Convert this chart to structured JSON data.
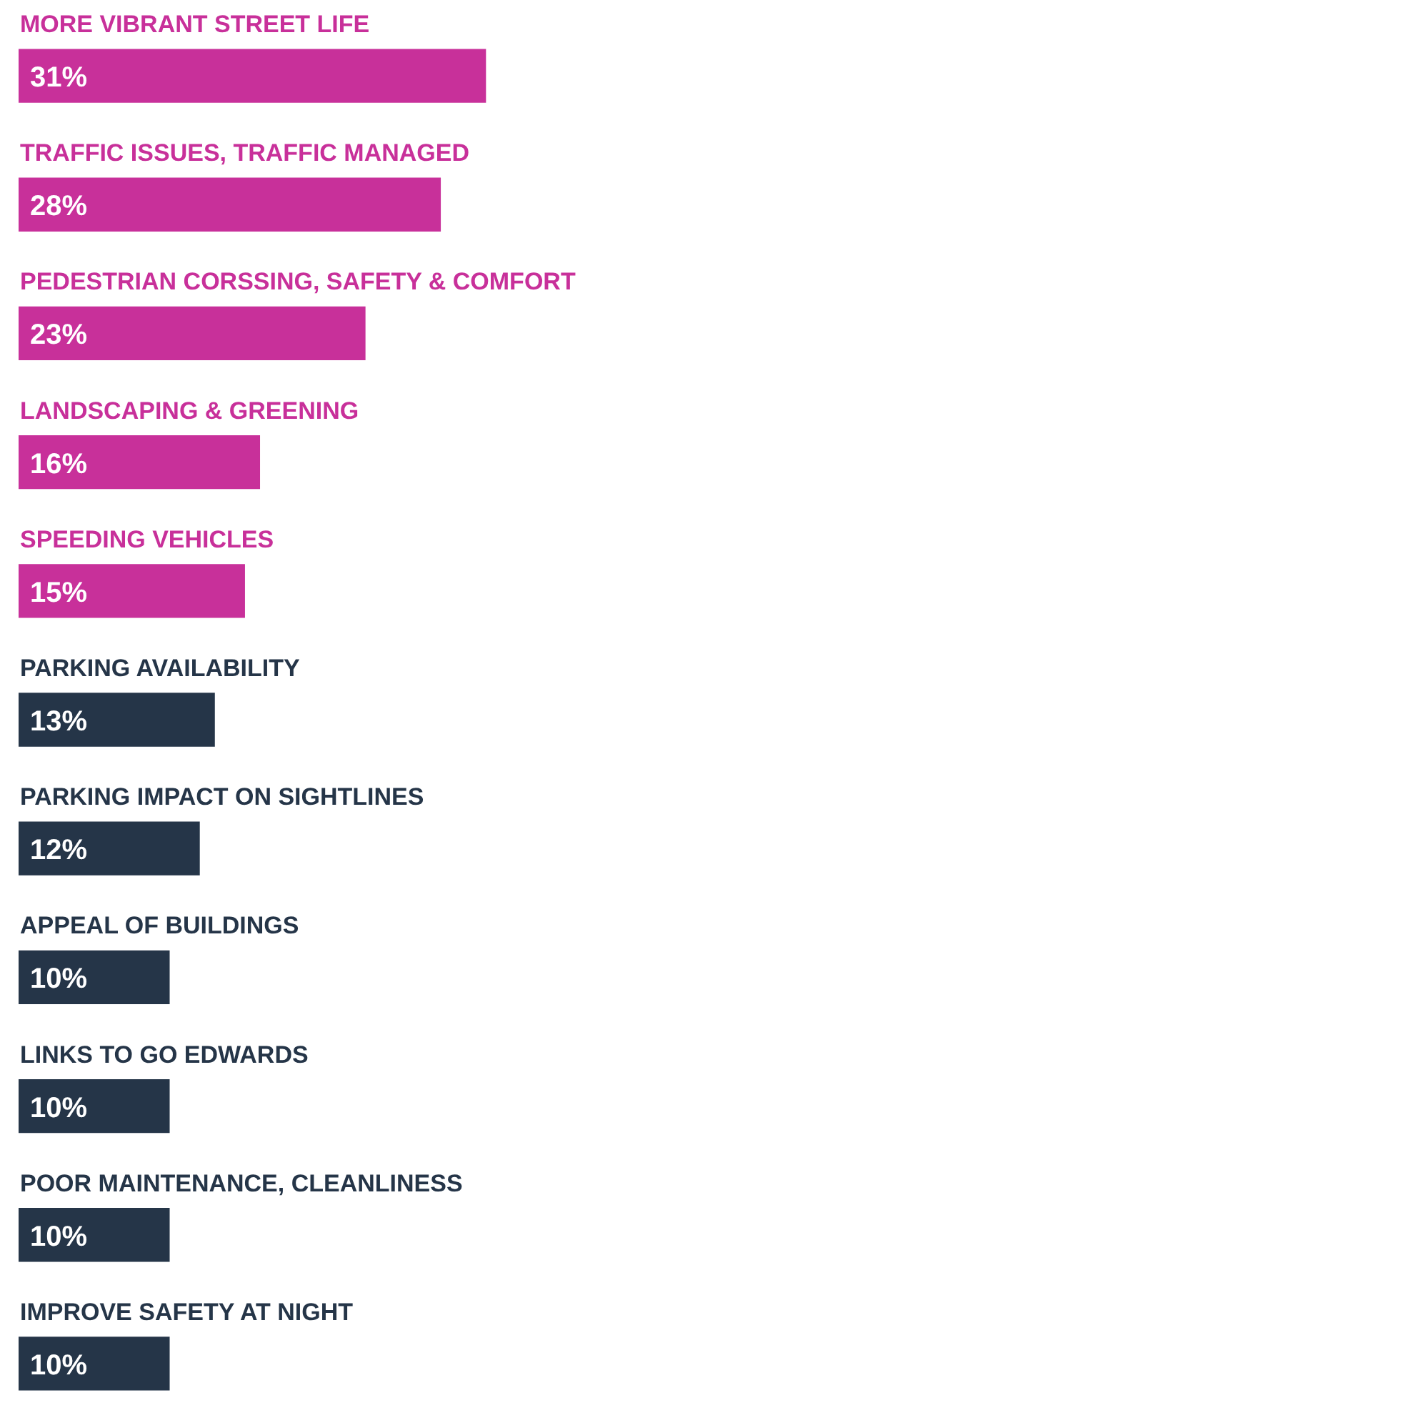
{
  "chart_data": {
    "type": "bar",
    "orientation": "horizontal",
    "categories": [
      "MORE VIBRANT STREET LIFE",
      "TRAFFIC ISSUES, TRAFFIC MANAGED",
      "PEDESTRIAN CORSSING, SAFETY & COMFORT",
      "LANDSCAPING & GREENING",
      "SPEEDING VEHICLES",
      "PARKING AVAILABILITY",
      "PARKING IMPACT ON SIGHTLINES",
      "APPEAL OF BUILDINGS",
      "LINKS TO GO EDWARDS",
      "POOR MAINTENANCE, CLEANLINESS",
      "IMPROVE SAFETY AT NIGHT"
    ],
    "values": [
      31,
      28,
      23,
      16,
      15,
      13,
      12,
      10,
      10,
      10,
      10
    ],
    "colors": [
      "#c8309a",
      "#c8309a",
      "#c8309a",
      "#c8309a",
      "#c8309a",
      "#253548",
      "#253548",
      "#253548",
      "#253548",
      "#253548",
      "#253548"
    ],
    "value_labels": [
      "31%",
      "28%",
      "23%",
      "16%",
      "15%",
      "13%",
      "12%",
      "10%",
      "10%",
      "10%",
      "10%"
    ],
    "legend": false
  }
}
